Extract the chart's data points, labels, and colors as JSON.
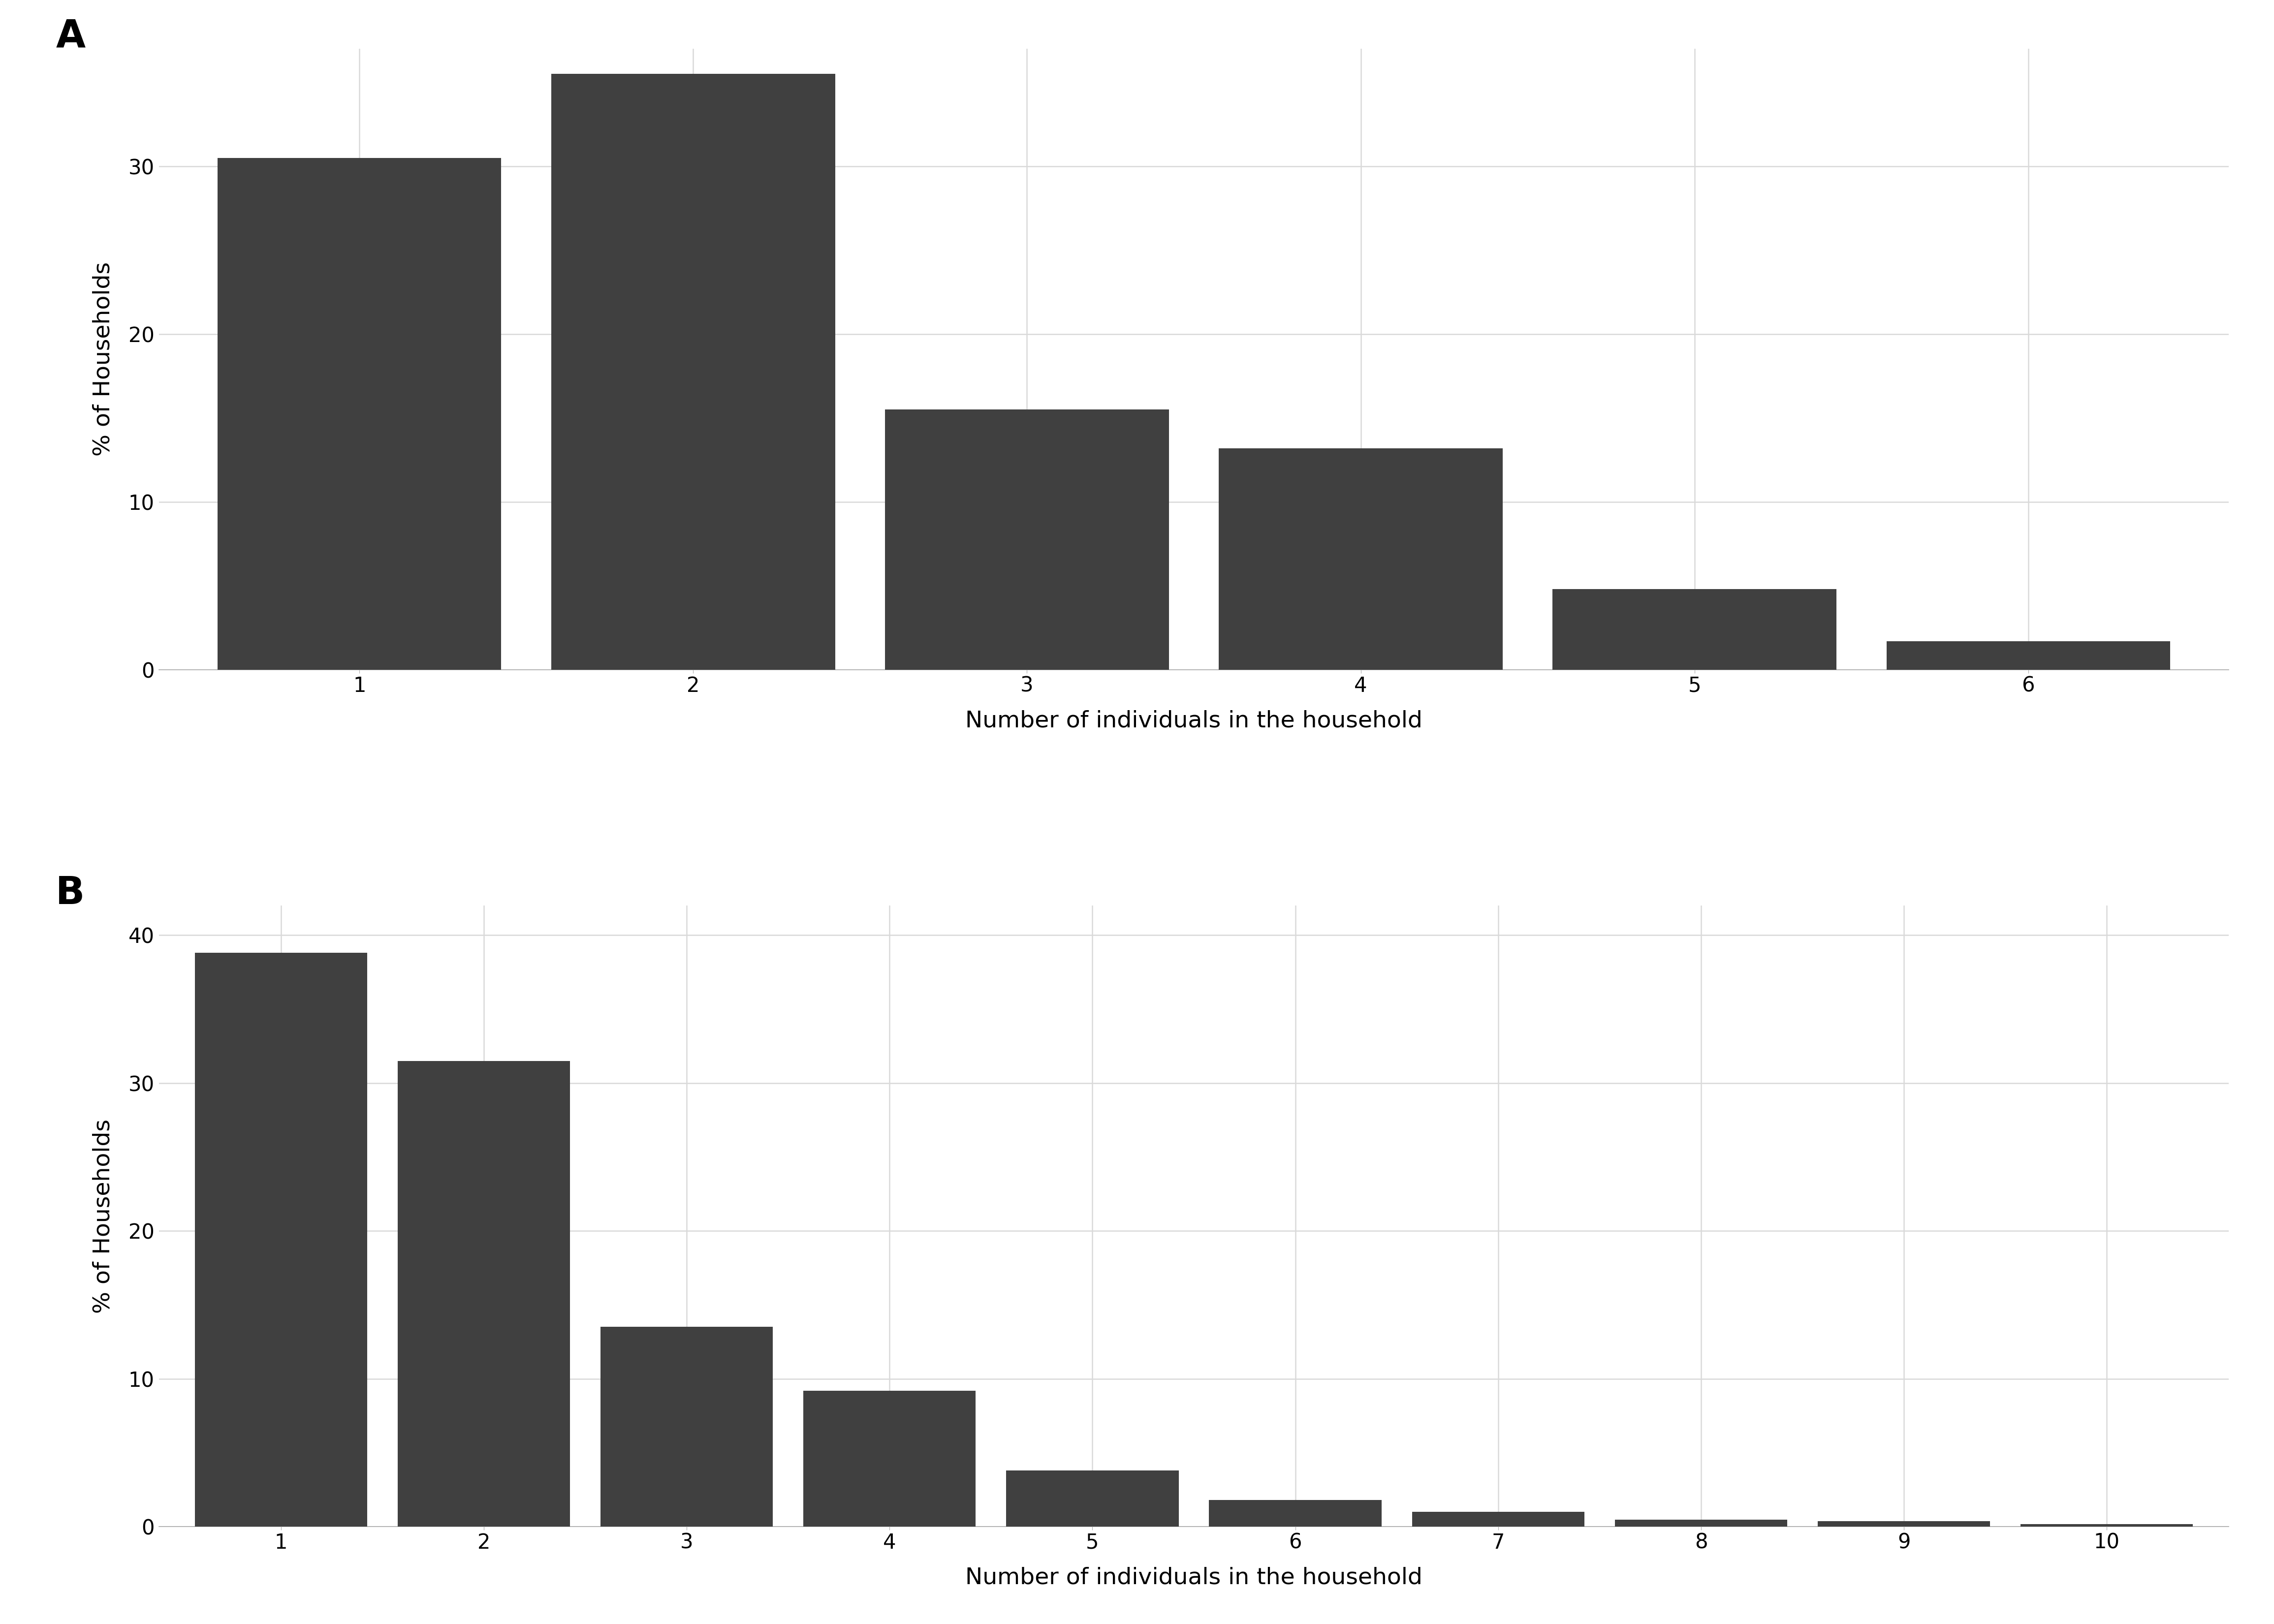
{
  "panel_A": {
    "label": "A",
    "categories": [
      1,
      2,
      3,
      4,
      5,
      6
    ],
    "values": [
      30.5,
      35.5,
      15.5,
      13.2,
      4.8,
      1.7
    ],
    "ylim": [
      0,
      37
    ],
    "yticks": [
      0,
      10,
      20,
      30
    ],
    "xlabel": "Number of individuals in the household",
    "ylabel": "% of Households"
  },
  "panel_B": {
    "label": "B",
    "categories": [
      1,
      2,
      3,
      4,
      5,
      6,
      7,
      8,
      9,
      10
    ],
    "values": [
      38.8,
      31.5,
      13.5,
      9.2,
      3.8,
      1.8,
      1.0,
      0.45,
      0.35,
      0.15
    ],
    "ylim": [
      0,
      42
    ],
    "yticks": [
      0,
      10,
      20,
      30,
      40
    ],
    "xlabel": "Number of individuals in the household",
    "ylabel": "% of Households"
  },
  "bar_color": "#404040",
  "background_color": "#ffffff",
  "grid_color": "#d9d9d9",
  "axis_label_fontsize": 34,
  "tick_fontsize": 30,
  "panel_label_fontsize": 56,
  "bar_width": 0.85
}
